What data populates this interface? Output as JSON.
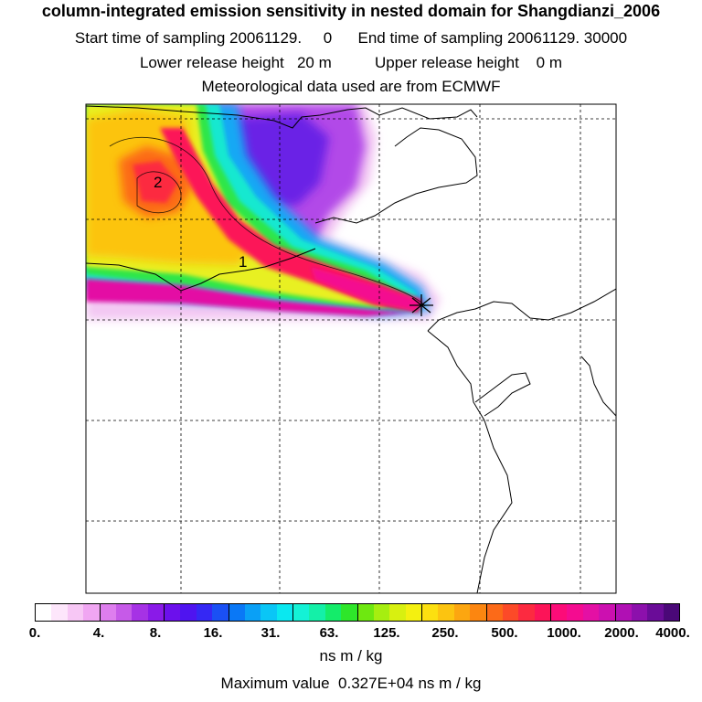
{
  "header": {
    "title": "column-integrated emission sensitivity in nested domain for Shangdianzi_2006",
    "line2": "Start time of sampling 20061129.     0      End time of sampling 20061129. 30000",
    "line3": "Lower release height   20 m          Upper release height    0 m",
    "line4": "Meteorological data used are from ECMWF"
  },
  "map": {
    "contour_labels": [
      "2",
      "1"
    ],
    "receptor_marker": "star"
  },
  "colorbar": {
    "ticks": [
      "0.",
      "4.",
      "8.",
      "16.",
      "31.",
      "63.",
      "125.",
      "250.",
      "500.",
      "1000.",
      "2000.",
      "4000."
    ],
    "colors": [
      "#ffffff",
      "#fde6fb",
      "#f7c7f5",
      "#f0a6f2",
      "#de7eee",
      "#c65ae8",
      "#a632e5",
      "#8a1ae8",
      "#6c10ec",
      "#4f14f0",
      "#3528f4",
      "#1a50f4",
      "#0a78f6",
      "#0aa0f6",
      "#0ac6f6",
      "#0ae8f0",
      "#14f2d6",
      "#14f0a8",
      "#14ec6a",
      "#2ee62a",
      "#6ee810",
      "#a6ee10",
      "#d8f010",
      "#f4f010",
      "#fce010",
      "#fcc410",
      "#fca610",
      "#fc8610",
      "#fc6a18",
      "#fc4a28",
      "#fc2a40",
      "#fc1458",
      "#fc0c78",
      "#f40c90",
      "#e410a4",
      "#cc10b0",
      "#b010b4",
      "#8c10ac",
      "#6a0c98",
      "#4a0878"
    ],
    "unit": "ns m / kg",
    "max_text": "Maximum value  0.327E+04 ns m / kg"
  }
}
